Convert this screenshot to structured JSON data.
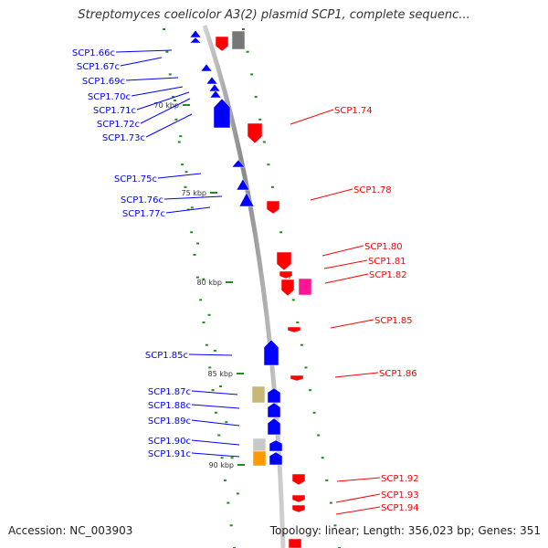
{
  "title": "Streptomyces coelicolor A3(2) plasmid SCP1, complete sequenc...",
  "accession": "Accession: NC_003903",
  "summary": "Topology: linear; Length: 356,023 bp; Genes: 351",
  "colors": {
    "forward": "#ff0000",
    "reverse": "#0000ff",
    "gray_feature": "#777777",
    "magenta_feature": "#ff1493",
    "olive_feature": "#c8b878",
    "orange_feature": "#ff9900",
    "light_gray_feature": "#c8c8c8",
    "tick": "#228b22",
    "backbone": "#999999"
  },
  "scale_labels": [
    "70 kbp",
    "75 kbp",
    "80 kbp",
    "85 kbp",
    "90 kbp"
  ],
  "left_genes": [
    "SCP1.66c",
    "SCP1.67c",
    "SCP1.69c",
    "SCP1.70c",
    "SCP1.71c",
    "SCP1.72c",
    "SCP1.73c",
    "SCP1.75c",
    "SCP1.76c",
    "SCP1.77c",
    "SCP1.85c",
    "SCP1.87c",
    "SCP1.88c",
    "SCP1.89c",
    "SCP1.90c",
    "SCP1.91c"
  ],
  "right_genes": [
    "SCP1.74",
    "SCP1.78",
    "SCP1.80",
    "SCP1.81",
    "SCP1.82",
    "SCP1.85",
    "SCP1.86",
    "SCP1.92",
    "SCP1.93",
    "SCP1.94"
  ]
}
